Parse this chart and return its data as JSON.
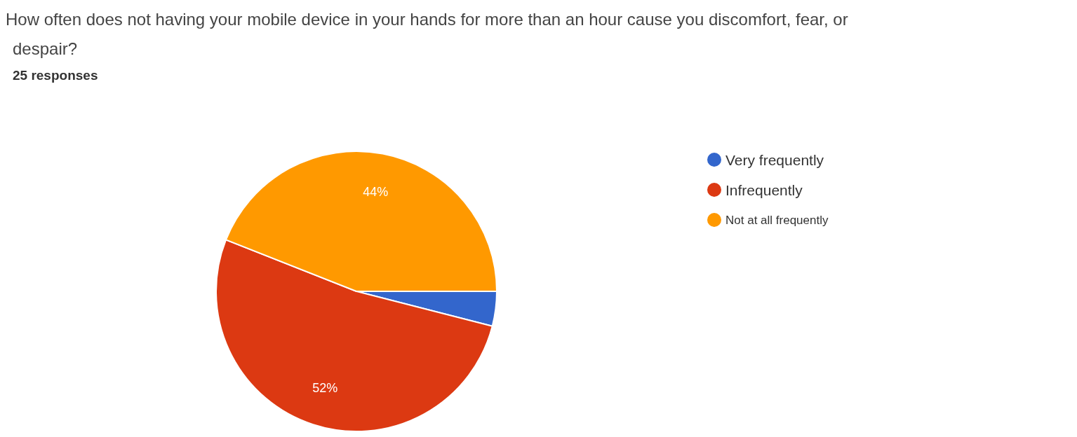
{
  "chart_data": {
    "type": "pie",
    "title": "How often does not having your mobile device in your hands for more than an hour cause you discomfort, fear, or despair?",
    "subtitle": "25 responses",
    "categories": [
      "Very frequently",
      "Infrequently",
      "Not at all frequently"
    ],
    "values": [
      4,
      52,
      44
    ],
    "colors": [
      "#3366cc",
      "#dc3912",
      "#ff9900"
    ],
    "value_labels": [
      null,
      "52%",
      "44%"
    ],
    "legend": "right"
  }
}
